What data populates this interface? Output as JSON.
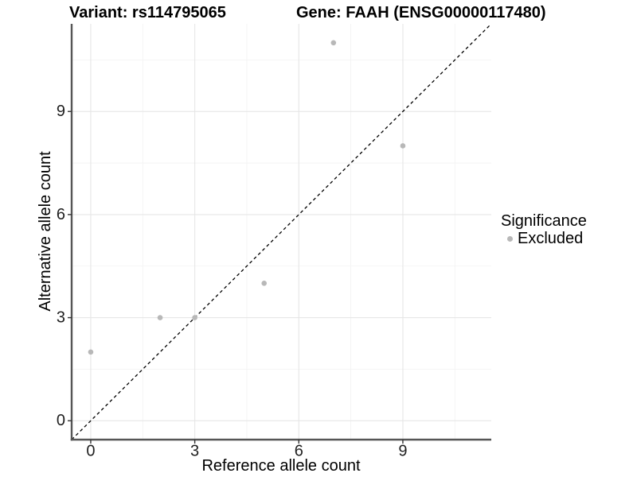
{
  "title_bar": {
    "variant": "Variant: rs114795065",
    "gene": "Gene: FAAH (ENSG00000117480)"
  },
  "legend": {
    "title": "Significance",
    "items": [
      {
        "label": "Excluded",
        "color": "#b8b8b8"
      }
    ]
  },
  "chart_data": {
    "type": "scatter",
    "title": "Variant: rs114795065 — Gene: FAAH (ENSG00000117480)",
    "xlabel": "Reference allele count",
    "ylabel": "Alternative allele count",
    "xlim": [
      -0.55,
      11.55
    ],
    "ylim": [
      -0.55,
      11.55
    ],
    "x_ticks": [
      0,
      3,
      6,
      9
    ],
    "y_ticks": [
      0,
      3,
      6,
      9
    ],
    "x_minor_gridlines": [
      1.5,
      4.5,
      7.5,
      10.5
    ],
    "y_minor_gridlines": [
      1.5,
      4.5,
      7.5,
      10.5
    ],
    "grid": "major and minor, light gray on white",
    "legend_position": "right",
    "series": [
      {
        "name": "Excluded",
        "marker": "circle",
        "color": "#b8b8b8",
        "points": [
          [
            0,
            2
          ],
          [
            2,
            3
          ],
          [
            3,
            3
          ],
          [
            5,
            4
          ],
          [
            7,
            11
          ],
          [
            9,
            8
          ]
        ]
      }
    ],
    "identity_line": {
      "slope": 1,
      "intercept": 0,
      "style": "dashed",
      "color": "#000000"
    }
  },
  "style": {
    "background": "#ffffff",
    "grid_major_color": "#e6e6e6",
    "grid_minor_color": "#f2f2f2",
    "axis_line_color": "#565656",
    "tick_mark_color": "#333333",
    "tick_label_color": "#1f1f1f",
    "point_radius": 3.3
  }
}
